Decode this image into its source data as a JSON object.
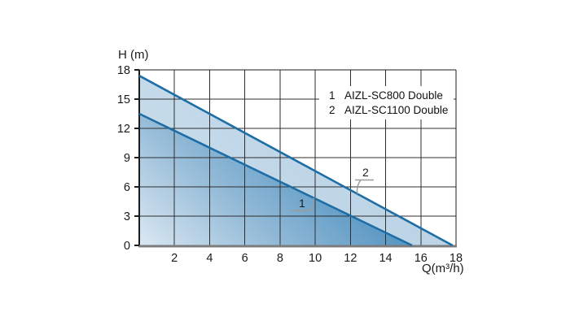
{
  "chart_data": {
    "type": "area",
    "title": "",
    "xlabel": "Q(m³/h)",
    "ylabel": "H (m)",
    "xlim": [
      0,
      18
    ],
    "ylim": [
      0,
      18
    ],
    "x_ticks": [
      2,
      4,
      6,
      8,
      10,
      12,
      14,
      16,
      18
    ],
    "y_ticks": [
      0,
      3,
      6,
      9,
      12,
      15,
      18
    ],
    "grid": true,
    "legend_position": "top-right",
    "series": [
      {
        "key": "1",
        "name": "AIZL-SC800 Double",
        "points": [
          [
            0,
            13.5
          ],
          [
            15.5,
            0
          ]
        ]
      },
      {
        "key": "2",
        "name": "AIZL-SC1100 Double",
        "points": [
          [
            0,
            17.4
          ],
          [
            17.8,
            0
          ]
        ]
      }
    ],
    "legend": {
      "entries": [
        {
          "key": "1",
          "label": "AIZL-SC800 Double"
        },
        {
          "key": "2",
          "label": "AIZL-SC1100 Double"
        }
      ]
    },
    "annotations": [
      {
        "text": "1",
        "label_q": 9.25,
        "label_h": 4.35,
        "attach_series": 0,
        "attach_q": 9.9
      },
      {
        "text": "2",
        "label_q": 12.86,
        "label_h": 7.5,
        "attach_series": 1,
        "attach_q": 12.4
      }
    ],
    "colors": {
      "curve": "#1d6ea7",
      "area_fill_light": "#dbe8f2",
      "area_fill_mid": "#93bad7",
      "area_fill_dark": "#5494c2",
      "band_fill_light": "#cfe0ed",
      "band_fill_dark": "#b4cfe3",
      "grid": "#2f2f2f",
      "border": "#1c1c1c",
      "axis_x": "#7c7c7c",
      "axis_y": "#1c1c1c",
      "text": "#1b1b1b",
      "leader": "#9b9b9b",
      "background": "#ffffff"
    }
  }
}
